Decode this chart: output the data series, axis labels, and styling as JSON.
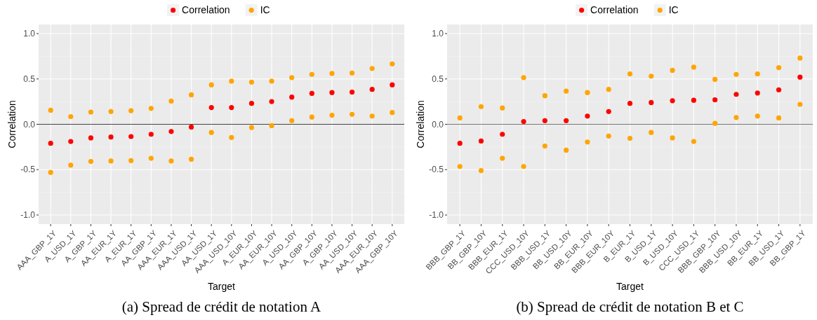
{
  "chart_data": [
    {
      "type": "scatter",
      "xlabel": "Target",
      "ylabel": "Correlation",
      "annotations": [
        "(a) Spread de crédit de notation A"
      ],
      "categories": [
        "AAA_GBP_1Y",
        "A_USD_1Y",
        "A_GBP_1Y",
        "AA_EUR_1Y",
        "A_EUR_1Y",
        "AA_GBP_1Y",
        "AAA_EUR_1Y",
        "AAA_USD_1Y",
        "AA_USD_1Y",
        "AAA_USD_10Y",
        "A_EUR_10Y",
        "AA_EUR_10Y",
        "A_USD_10Y",
        "AA_GBP_10Y",
        "A_GBP_10Y",
        "AA_USD_10Y",
        "AAA_EUR_10Y",
        "AAA_GBP_10Y"
      ],
      "series": [
        {
          "name": "Correlation",
          "color": "#ff0000",
          "values": [
            -0.21,
            -0.19,
            -0.15,
            -0.14,
            -0.135,
            -0.11,
            -0.08,
            -0.03,
            0.185,
            0.185,
            0.23,
            0.25,
            0.3,
            0.34,
            0.35,
            0.355,
            0.385,
            0.435
          ]
        },
        {
          "name": "IC",
          "color": "#ffa500",
          "values": [
            0.155,
            0.085,
            0.135,
            0.14,
            0.15,
            0.175,
            0.255,
            0.325,
            0.435,
            0.475,
            0.465,
            0.475,
            0.515,
            0.55,
            0.56,
            0.565,
            0.615,
            0.665
          ]
        },
        {
          "color": "#ffa500",
          "values": [
            -0.53,
            -0.45,
            -0.41,
            -0.405,
            -0.4,
            -0.375,
            -0.405,
            -0.385,
            -0.09,
            -0.145,
            -0.035,
            -0.015,
            0.04,
            0.08,
            0.1,
            0.11,
            0.09,
            0.13
          ]
        }
      ],
      "ylim": [
        -1.1,
        1.1
      ],
      "yticks": [
        {
          "value": -1,
          "label": "-1.0"
        },
        {
          "value": -0.5,
          "label": "-0.5"
        },
        {
          "value": 0,
          "label": "0.0"
        },
        {
          "value": 0.5,
          "label": "0.5"
        },
        {
          "value": 1,
          "label": "1.0"
        }
      ],
      "ref_lines": [
        {
          "axis": "y",
          "value": 0,
          "color": "#444444"
        }
      ],
      "grid": true,
      "legend": "top",
      "marker": "circle"
    },
    {
      "type": "scatter",
      "xlabel": "Target",
      "ylabel": "Correlation",
      "annotations": [
        "(b) Spread de crédit de notation B et C"
      ],
      "categories": [
        "BBB_GBP_1Y",
        "BB_GBP_10Y",
        "BBB_EUR_1Y",
        "CCC_USD_10Y",
        "BBB_USD_1Y",
        "BB_USD_10Y",
        "BB_EUR_10Y",
        "BBB_EUR_10Y",
        "B_EUR_1Y",
        "B_USD_1Y",
        "B_USD_10Y",
        "CCC_USD_1Y",
        "BBB_GBP_10Y",
        "BBB_USD_10Y",
        "BB_EUR_1Y",
        "BB_USD_1Y",
        "BB_GBP_1Y"
      ],
      "series": [
        {
          "name": "Correlation",
          "color": "#ff0000",
          "values": [
            -0.21,
            -0.185,
            -0.11,
            0.03,
            0.04,
            0.04,
            0.09,
            0.14,
            0.23,
            0.24,
            0.26,
            0.265,
            0.27,
            0.33,
            0.345,
            0.38,
            0.52
          ]
        },
        {
          "name": "IC",
          "color": "#ffa500",
          "values": [
            0.07,
            0.195,
            0.18,
            0.515,
            0.315,
            0.365,
            0.35,
            0.385,
            0.555,
            0.53,
            0.595,
            0.63,
            0.495,
            0.55,
            0.555,
            0.625,
            0.73
          ]
        },
        {
          "color": "#ffa500",
          "values": [
            -0.465,
            -0.51,
            -0.375,
            -0.465,
            -0.24,
            -0.285,
            -0.195,
            -0.13,
            -0.155,
            -0.09,
            -0.15,
            -0.19,
            0.01,
            0.075,
            0.09,
            0.07,
            0.22
          ]
        }
      ],
      "ylim": [
        -1.1,
        1.1
      ],
      "yticks": [
        {
          "value": -1,
          "label": "-1.0"
        },
        {
          "value": -0.5,
          "label": "-0.5"
        },
        {
          "value": 0,
          "label": "0.0"
        },
        {
          "value": 0.5,
          "label": "0.5"
        },
        {
          "value": 1,
          "label": "1.0"
        }
      ],
      "ref_lines": [
        {
          "axis": "y",
          "value": 0,
          "color": "#777777"
        }
      ],
      "grid": true,
      "legend": "top",
      "marker": "circle"
    }
  ]
}
